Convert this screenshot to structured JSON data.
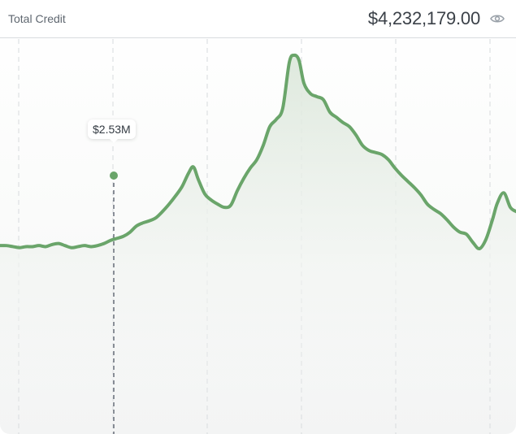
{
  "header": {
    "title": "Total Credit",
    "amount": "$4,232,179.00",
    "visibility_icon": "eye-icon"
  },
  "colors": {
    "line": "#6aa56a",
    "grid": "#d7dadd",
    "cursor": "#5d6470"
  },
  "tooltip": {
    "label": "$2.53M"
  },
  "chart_data": {
    "type": "line",
    "title": "",
    "xlabel": "",
    "ylabel": "",
    "grid": true,
    "series": [
      {
        "points": [
          [
            0,
            2.33
          ],
          [
            8,
            2.33
          ],
          [
            16,
            2.32
          ],
          [
            24,
            2.31
          ],
          [
            32,
            2.32
          ],
          [
            40,
            2.32
          ],
          [
            48,
            2.33
          ],
          [
            56,
            2.32
          ],
          [
            64,
            2.34
          ],
          [
            72,
            2.35
          ],
          [
            80,
            2.33
          ],
          [
            88,
            2.31
          ],
          [
            96,
            2.32
          ],
          [
            104,
            2.33
          ],
          [
            112,
            2.32
          ],
          [
            120,
            2.33
          ],
          [
            128,
            2.35
          ],
          [
            136,
            2.38
          ],
          [
            140,
            2.53
          ],
          [
            144,
            2.4
          ],
          [
            152,
            2.42
          ],
          [
            160,
            2.46
          ],
          [
            168,
            2.52
          ],
          [
            176,
            2.55
          ],
          [
            184,
            2.57
          ],
          [
            192,
            2.6
          ],
          [
            200,
            2.66
          ],
          [
            208,
            2.73
          ],
          [
            216,
            2.81
          ],
          [
            224,
            2.9
          ],
          [
            232,
            3.03
          ],
          [
            238,
            3.09
          ],
          [
            244,
            2.97
          ],
          [
            252,
            2.83
          ],
          [
            260,
            2.77
          ],
          [
            268,
            2.73
          ],
          [
            276,
            2.7
          ],
          [
            284,
            2.72
          ],
          [
            292,
            2.86
          ],
          [
            300,
            2.98
          ],
          [
            308,
            3.08
          ],
          [
            316,
            3.16
          ],
          [
            324,
            3.3
          ],
          [
            332,
            3.48
          ],
          [
            340,
            3.55
          ],
          [
            348,
            3.66
          ],
          [
            356,
            4.1
          ],
          [
            362,
            4.17
          ],
          [
            368,
            4.12
          ],
          [
            374,
            3.9
          ],
          [
            382,
            3.8
          ],
          [
            390,
            3.77
          ],
          [
            398,
            3.74
          ],
          [
            406,
            3.62
          ],
          [
            414,
            3.57
          ],
          [
            422,
            3.52
          ],
          [
            430,
            3.48
          ],
          [
            438,
            3.4
          ],
          [
            446,
            3.3
          ],
          [
            454,
            3.25
          ],
          [
            462,
            3.23
          ],
          [
            470,
            3.21
          ],
          [
            478,
            3.16
          ],
          [
            486,
            3.08
          ],
          [
            494,
            3.01
          ],
          [
            502,
            2.95
          ],
          [
            510,
            2.89
          ],
          [
            518,
            2.82
          ],
          [
            526,
            2.73
          ],
          [
            534,
            2.68
          ],
          [
            542,
            2.64
          ],
          [
            550,
            2.58
          ],
          [
            558,
            2.51
          ],
          [
            566,
            2.46
          ],
          [
            574,
            2.44
          ],
          [
            582,
            2.36
          ],
          [
            590,
            2.3
          ],
          [
            598,
            2.39
          ],
          [
            606,
            2.58
          ],
          [
            612,
            2.74
          ],
          [
            620,
            2.84
          ],
          [
            628,
            2.7
          ],
          [
            635,
            2.66
          ]
        ]
      }
    ]
  }
}
